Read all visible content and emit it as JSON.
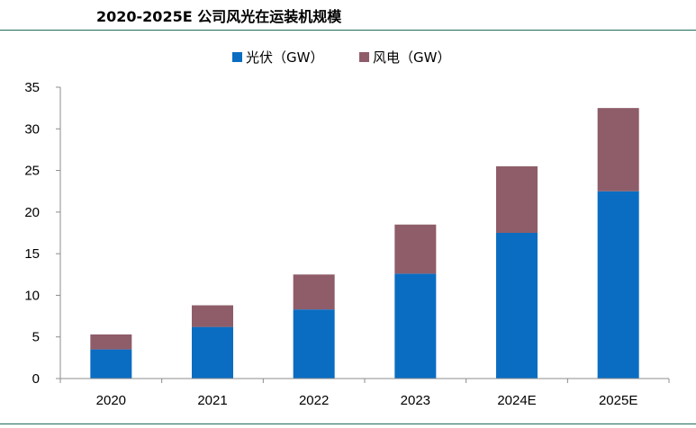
{
  "title": "2020-2025E 公司风光在运装机规模",
  "chart_data": {
    "type": "bar",
    "stacked": true,
    "title": "2020-2025E 公司风光在运装机规模",
    "categories": [
      "2020",
      "2021",
      "2022",
      "2023",
      "2024E",
      "2025E"
    ],
    "series": [
      {
        "name": "光伏（GW）",
        "color": "#0A6DC2",
        "values": [
          3.5,
          6.2,
          8.3,
          12.6,
          17.5,
          22.5
        ]
      },
      {
        "name": "风电（GW）",
        "color": "#8E5D69",
        "values": [
          1.8,
          2.6,
          4.2,
          5.9,
          8.0,
          10.0
        ]
      }
    ],
    "yticks": [
      "0",
      "5",
      "10",
      "15",
      "20",
      "25",
      "30",
      "35"
    ],
    "ylim": [
      0,
      35
    ],
    "xlabel": "",
    "ylabel": "",
    "legend_position": "top-center",
    "grid": false
  }
}
